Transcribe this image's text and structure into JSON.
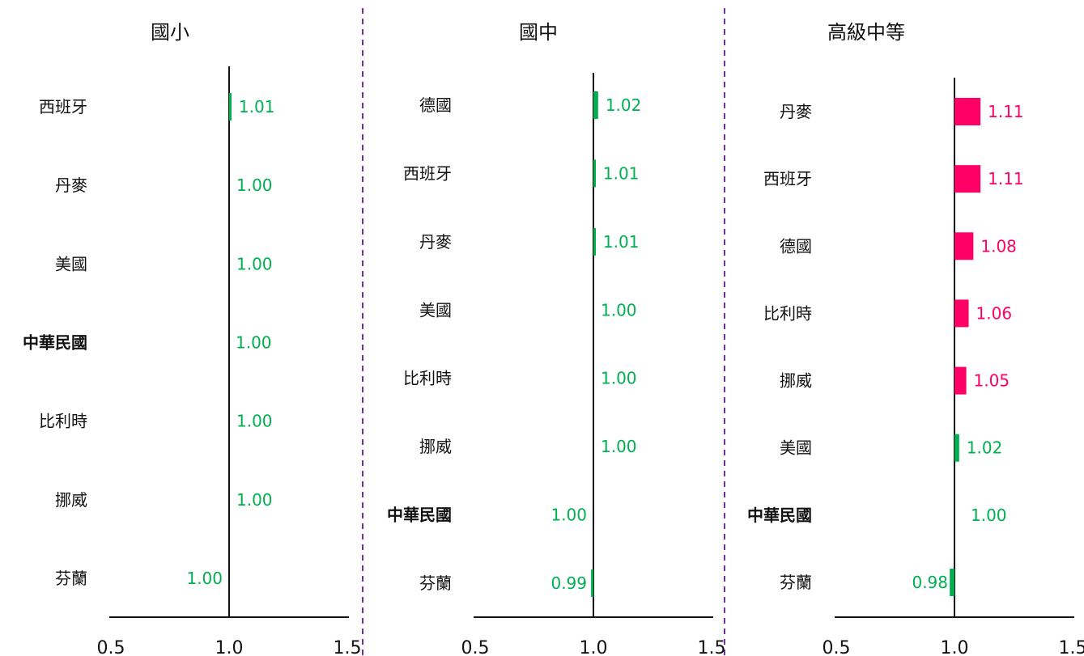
{
  "colors": {
    "positive": "#ff0066",
    "neutral": "#00b050",
    "axis": "#111111",
    "separator": "#7030a0"
  },
  "chart_data": [
    {
      "type": "bar",
      "title": "國小",
      "baseline": 1.0,
      "xlim": [
        0.5,
        1.5
      ],
      "xticks": [
        "0.5",
        "1.0",
        "1.5"
      ],
      "highlight": "中華民國",
      "categories": [
        "西班牙",
        "丹麥",
        "美國",
        "中華民國",
        "比利時",
        "挪威",
        "芬蘭"
      ],
      "values": [
        1.01,
        1.0,
        1.0,
        1.0,
        1.0,
        1.0,
        1.0
      ],
      "labels": [
        "1.01",
        "1.00",
        "1.00",
        "1.00",
        "1.00",
        "1.00",
        "1.00"
      ]
    },
    {
      "type": "bar",
      "title": "國中",
      "baseline": 1.0,
      "xlim": [
        0.5,
        1.5
      ],
      "xticks": [
        "0.5",
        "1.0",
        "1.5"
      ],
      "highlight": "中華民國",
      "categories": [
        "德國",
        "西班牙",
        "丹麥",
        "美國",
        "比利時",
        "挪威",
        "中華民國",
        "芬蘭"
      ],
      "values": [
        1.02,
        1.01,
        1.01,
        1.0,
        1.0,
        1.0,
        1.0,
        0.99
      ],
      "labels": [
        "1.02",
        "1.01",
        "1.01",
        "1.00",
        "1.00",
        "1.00",
        "1.00",
        "0.99"
      ]
    },
    {
      "type": "bar",
      "title": "高級中等",
      "baseline": 1.0,
      "xlim": [
        0.5,
        1.5
      ],
      "xticks": [
        "0.5",
        "1.0",
        "1.5"
      ],
      "highlight": "中華民國",
      "categories": [
        "丹麥",
        "西班牙",
        "德國",
        "比利時",
        "挪威",
        "美國",
        "中華民國",
        "芬蘭"
      ],
      "values": [
        1.11,
        1.11,
        1.08,
        1.06,
        1.05,
        1.02,
        1.0,
        0.98
      ],
      "labels": [
        "1.11",
        "1.11",
        "1.08",
        "1.06",
        "1.05",
        "1.02",
        "1.00",
        "0.98"
      ]
    }
  ]
}
